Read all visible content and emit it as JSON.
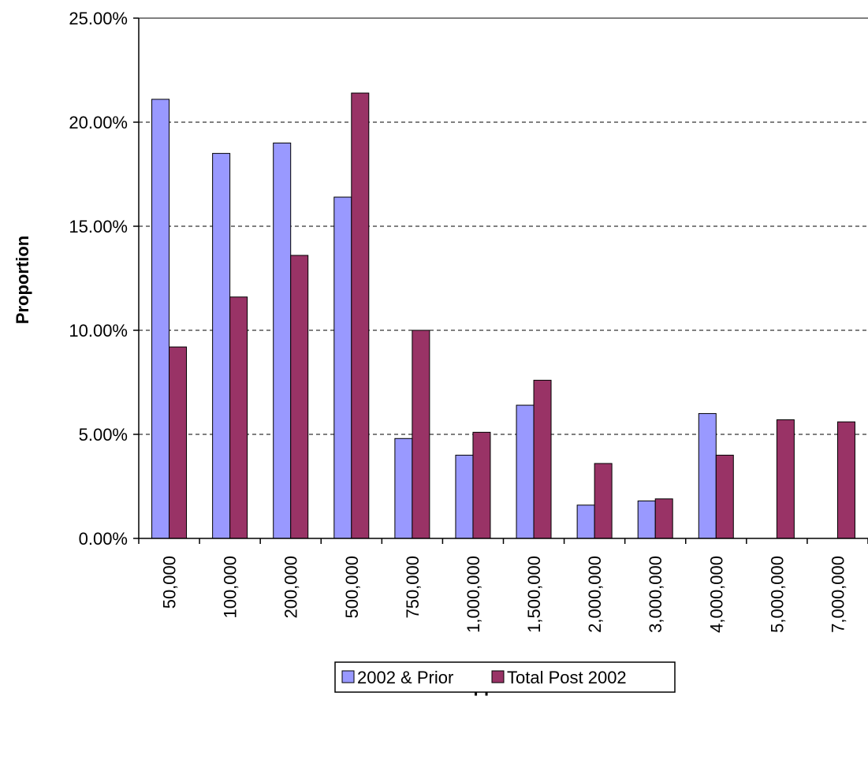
{
  "chart_data": {
    "type": "bar",
    "title": "",
    "xlabel": "Upper Band",
    "ylabel": "Proportion",
    "ylim": [
      0,
      25
    ],
    "yticks": [
      "0.00%",
      "5.00%",
      "10.00%",
      "15.00%",
      "20.00%",
      "25.00%"
    ],
    "ytick_values": [
      0,
      5,
      10,
      15,
      20,
      25
    ],
    "categories": [
      "50,000",
      "100,000",
      "200,000",
      "500,000",
      "750,000",
      "1,000,000",
      "1,500,000",
      "2,000,000",
      "3,000,000",
      "4,000,000",
      "5,000,000",
      "7,000,000"
    ],
    "series": [
      {
        "name": "2002 & Prior",
        "color": "#9999ff",
        "values": [
          21.1,
          18.5,
          19.0,
          16.4,
          4.8,
          4.0,
          6.4,
          1.6,
          1.8,
          6.0,
          0.0,
          0.0
        ]
      },
      {
        "name": "Total Post 2002",
        "color": "#993366",
        "values": [
          9.2,
          11.6,
          13.6,
          21.4,
          10.0,
          5.1,
          7.6,
          3.6,
          1.9,
          4.0,
          5.7,
          5.6
        ]
      }
    ],
    "grid": true,
    "legend_position": "bottom"
  }
}
